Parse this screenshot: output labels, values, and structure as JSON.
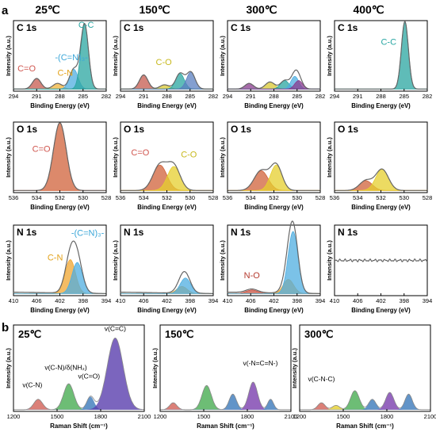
{
  "figure": {
    "panel_a_label": "a",
    "panel_b_label": "b",
    "temperatures": [
      "25℃",
      "150℃",
      "300℃",
      "400℃"
    ],
    "raman_temperatures": [
      "25℃",
      "150℃",
      "300℃"
    ]
  },
  "chart_data": [
    {
      "type": "line",
      "panel": "a",
      "element": "C 1s",
      "row_title": "C 1s",
      "xlabel": "Binding Energy (eV)",
      "ylabel": "Intensity (a.u.)",
      "xlim": [
        294,
        282
      ],
      "xticks": [
        294,
        291,
        288,
        285,
        282
      ],
      "subplots": [
        {
          "temperature": "25℃",
          "annotations": [
            {
              "text": "C=O",
              "color": "#d0564f",
              "x": 292.3,
              "y": 0.28
            },
            {
              "text": "C-N",
              "color": "#e3a21a",
              "x": 287.3,
              "y": 0.22
            },
            {
              "text": "-(C=N)₃-",
              "color": "#3aa6d8",
              "x": 286.5,
              "y": 0.44
            },
            {
              "text": "C-C",
              "color": "#27a6a2",
              "x": 284.6,
              "y": 0.9
            }
          ],
          "components": [
            {
              "name": "C=O",
              "center": 291,
              "amp": 0.15,
              "width": 0.55,
              "color": "#c55a4e"
            },
            {
              "name": "C-N",
              "center": 288.3,
              "amp": 0.08,
              "width": 0.6,
              "color": "#f0b33a"
            },
            {
              "name": "-(C=N)₃-",
              "center": 286.2,
              "amp": 0.28,
              "width": 0.55,
              "color": "#4faee0"
            },
            {
              "name": "C-C",
              "center": 284.8,
              "amp": 0.92,
              "width": 0.5,
              "color": "#2aa5a0"
            }
          ]
        },
        {
          "temperature": "150℃",
          "annotations": [
            {
              "text": "C-O",
              "color": "#c7b81c",
              "x": 288.4,
              "y": 0.37
            }
          ],
          "components": [
            {
              "name": "C=O",
              "center": 291,
              "amp": 0.2,
              "width": 0.55,
              "color": "#c55a4e"
            },
            {
              "name": "C-O",
              "center": 288.3,
              "amp": 0.06,
              "width": 0.6,
              "color": "#d9c832"
            },
            {
              "name": "C-C",
              "center": 286.3,
              "amp": 0.22,
              "width": 0.55,
              "color": "#2aa5a0"
            },
            {
              "name": "-(C=N)₃-",
              "center": 284.9,
              "amp": 0.24,
              "width": 0.55,
              "color": "#5a7fc0"
            }
          ]
        },
        {
          "temperature": "300℃",
          "annotations": [],
          "components": [
            {
              "name": "C=O",
              "center": 291.2,
              "amp": 0.08,
              "width": 0.55,
              "color": "#8a3a8e"
            },
            {
              "name": "C-O",
              "center": 288.5,
              "amp": 0.1,
              "width": 0.6,
              "color": "#d9c832"
            },
            {
              "name": "C-C",
              "center": 286.6,
              "amp": 0.12,
              "width": 0.55,
              "color": "#2aa5a0"
            },
            {
              "name": "-(C=N)₃-",
              "center": 285.3,
              "amp": 0.18,
              "width": 0.5,
              "color": "#4faee0"
            },
            {
              "name": "C-N",
              "center": 284.8,
              "amp": 0.12,
              "width": 0.5,
              "color": "#8a3a8e"
            }
          ]
        },
        {
          "temperature": "400℃",
          "annotations": [
            {
              "text": "C-C",
              "color": "#27a6a2",
              "x": 287.0,
              "y": 0.66
            }
          ],
          "components": [
            {
              "name": "C-C",
              "center": 284.9,
              "amp": 0.96,
              "width": 0.45,
              "color": "#2aa5a0"
            }
          ]
        }
      ]
    },
    {
      "type": "line",
      "panel": "a",
      "element": "O 1s",
      "row_title": "O 1s",
      "xlabel": "Binding Energy (eV)",
      "ylabel": "Intensity (a.u.)",
      "xlim": [
        536,
        528
      ],
      "xticks": [
        536,
        534,
        532,
        530,
        528
      ],
      "subplots": [
        {
          "temperature": "25℃",
          "annotations": [
            {
              "text": "C=O",
              "color": "#d0564f",
              "x": 533.6,
              "y": 0.58
            }
          ],
          "components": [
            {
              "name": "C=O",
              "center": 532.0,
              "amp": 0.96,
              "width": 0.55,
              "color": "#d0623a"
            }
          ]
        },
        {
          "temperature": "150℃",
          "annotations": [
            {
              "text": "C=O",
              "color": "#d0564f",
              "x": 534.3,
              "y": 0.53
            },
            {
              "text": "C-O",
              "color": "#c7b81c",
              "x": 530.1,
              "y": 0.5
            }
          ],
          "components": [
            {
              "name": "C=O",
              "center": 532.6,
              "amp": 0.36,
              "width": 0.6,
              "color": "#d0623a"
            },
            {
              "name": "C-O",
              "center": 531.4,
              "amp": 0.34,
              "width": 0.55,
              "color": "#e6cf2e"
            }
          ]
        },
        {
          "temperature": "300℃",
          "annotations": [],
          "components": [
            {
              "name": "C=O",
              "center": 533.1,
              "amp": 0.28,
              "width": 0.6,
              "color": "#d0623a"
            },
            {
              "name": "C-O",
              "center": 531.8,
              "amp": 0.36,
              "width": 0.5,
              "color": "#e6cf2e"
            }
          ]
        },
        {
          "temperature": "400℃",
          "annotations": [],
          "components": [
            {
              "name": "C=O",
              "center": 533.3,
              "amp": 0.14,
              "width": 0.55,
              "color": "#d0623a"
            },
            {
              "name": "C-O",
              "center": 531.9,
              "amp": 0.3,
              "width": 0.55,
              "color": "#e6cf2e"
            }
          ]
        }
      ]
    },
    {
      "type": "line",
      "panel": "a",
      "element": "N 1s",
      "row_title": "N 1s",
      "xlabel": "Binding Energy (eV)",
      "ylabel": "Intensity (a.u.)",
      "xlim": [
        410,
        394
      ],
      "xticks": [
        410,
        406,
        402,
        398,
        394
      ],
      "subplots": [
        {
          "temperature": "25℃",
          "annotations": [
            {
              "text": "-(C=N)₃-",
              "color": "#3aa6d8",
              "x": 397.2,
              "y": 0.85
            },
            {
              "text": "C-N",
              "color": "#e3a21a",
              "x": 402.8,
              "y": 0.5
            }
          ],
          "components": [
            {
              "name": "C-N",
              "center": 400.2,
              "amp": 0.48,
              "width": 0.9,
              "color": "#f0a630"
            },
            {
              "name": "-(C=N)₃-",
              "center": 399.0,
              "amp": 0.44,
              "width": 0.9,
              "color": "#4faee0"
            }
          ]
        },
        {
          "temperature": "150℃",
          "annotations": [],
          "components": [
            {
              "name": "C-N",
              "center": 399.4,
              "amp": 0.1,
              "width": 0.9,
              "color": "#f0a630"
            },
            {
              "name": "-(C=N)₃-",
              "center": 398.8,
              "amp": 0.22,
              "width": 0.9,
              "color": "#4faee0"
            }
          ]
        },
        {
          "temperature": "300℃",
          "annotations": [
            {
              "text": "N-O",
              "color": "#b53a2e",
              "x": 405.8,
              "y": 0.25
            }
          ],
          "components": [
            {
              "name": "N-O",
              "center": 405.8,
              "amp": 0.05,
              "width": 1.0,
              "color": "#c85040"
            },
            {
              "name": "C-N",
              "center": 399.5,
              "amp": 0.2,
              "width": 0.9,
              "color": "#f0a630"
            },
            {
              "name": "-(C=N)₃-",
              "center": 398.7,
              "amp": 0.88,
              "width": 0.85,
              "color": "#4faee0"
            }
          ]
        },
        {
          "temperature": "400℃",
          "annotations": [],
          "components": [],
          "flat": 0.5
        }
      ]
    },
    {
      "type": "line",
      "panel": "b",
      "title": "",
      "xlabel": "Raman Shift (cm⁻¹)",
      "ylabel": "Intensity (a.u.)",
      "xlim": [
        1200,
        2100
      ],
      "xticks": [
        1200,
        1500,
        1800,
        2100
      ],
      "subplots": [
        {
          "temperature": "25℃",
          "annotations": [
            {
              "text": "v(C-N)",
              "x": 1330,
              "y": 0.28
            },
            {
              "text": "v(C-N)/δ(NH₂)",
              "x": 1560,
              "y": 0.48
            },
            {
              "text": "v(C=O)",
              "x": 1720,
              "y": 0.38
            },
            {
              "text": "v(C=C)",
              "x": 1900,
              "y": 0.93
            }
          ],
          "components": [
            {
              "center": 1370,
              "amp": 0.12,
              "width": 30,
              "color": "#d26056"
            },
            {
              "center": 1580,
              "amp": 0.3,
              "width": 35,
              "color": "#48ad52"
            },
            {
              "center": 1730,
              "amp": 0.15,
              "width": 25,
              "color": "#3b79ba"
            },
            {
              "center": 1900,
              "amp": 0.83,
              "width": 55,
              "color": "#5a3fae"
            }
          ]
        },
        {
          "temperature": "150℃",
          "annotations": [
            {
              "text": "v(-N=C=N-)",
              "x": 1890,
              "y": 0.53
            }
          ],
          "components": [
            {
              "center": 1290,
              "amp": 0.08,
              "width": 25,
              "color": "#d26056"
            },
            {
              "center": 1520,
              "amp": 0.28,
              "width": 32,
              "color": "#48ad52"
            },
            {
              "center": 1700,
              "amp": 0.18,
              "width": 25,
              "color": "#3b79ba"
            },
            {
              "center": 1840,
              "amp": 0.32,
              "width": 30,
              "color": "#7a3fae"
            },
            {
              "center": 1960,
              "amp": 0.12,
              "width": 20,
              "color": "#3b79ba"
            }
          ]
        },
        {
          "temperature": "300℃",
          "annotations": [
            {
              "text": "v(C-N-C)",
              "x": 1350,
              "y": 0.35
            }
          ],
          "components": [
            {
              "center": 1350,
              "amp": 0.08,
              "width": 25,
              "color": "#d26056"
            },
            {
              "center": 1450,
              "amp": 0.05,
              "width": 25,
              "color": "#e6cf2e"
            },
            {
              "center": 1580,
              "amp": 0.22,
              "width": 30,
              "color": "#48ad52"
            },
            {
              "center": 1700,
              "amp": 0.12,
              "width": 25,
              "color": "#3b79ba"
            },
            {
              "center": 1820,
              "amp": 0.2,
              "width": 28,
              "color": "#7a3fae"
            },
            {
              "center": 1950,
              "amp": 0.18,
              "width": 25,
              "color": "#3b79ba"
            }
          ]
        }
      ]
    }
  ]
}
